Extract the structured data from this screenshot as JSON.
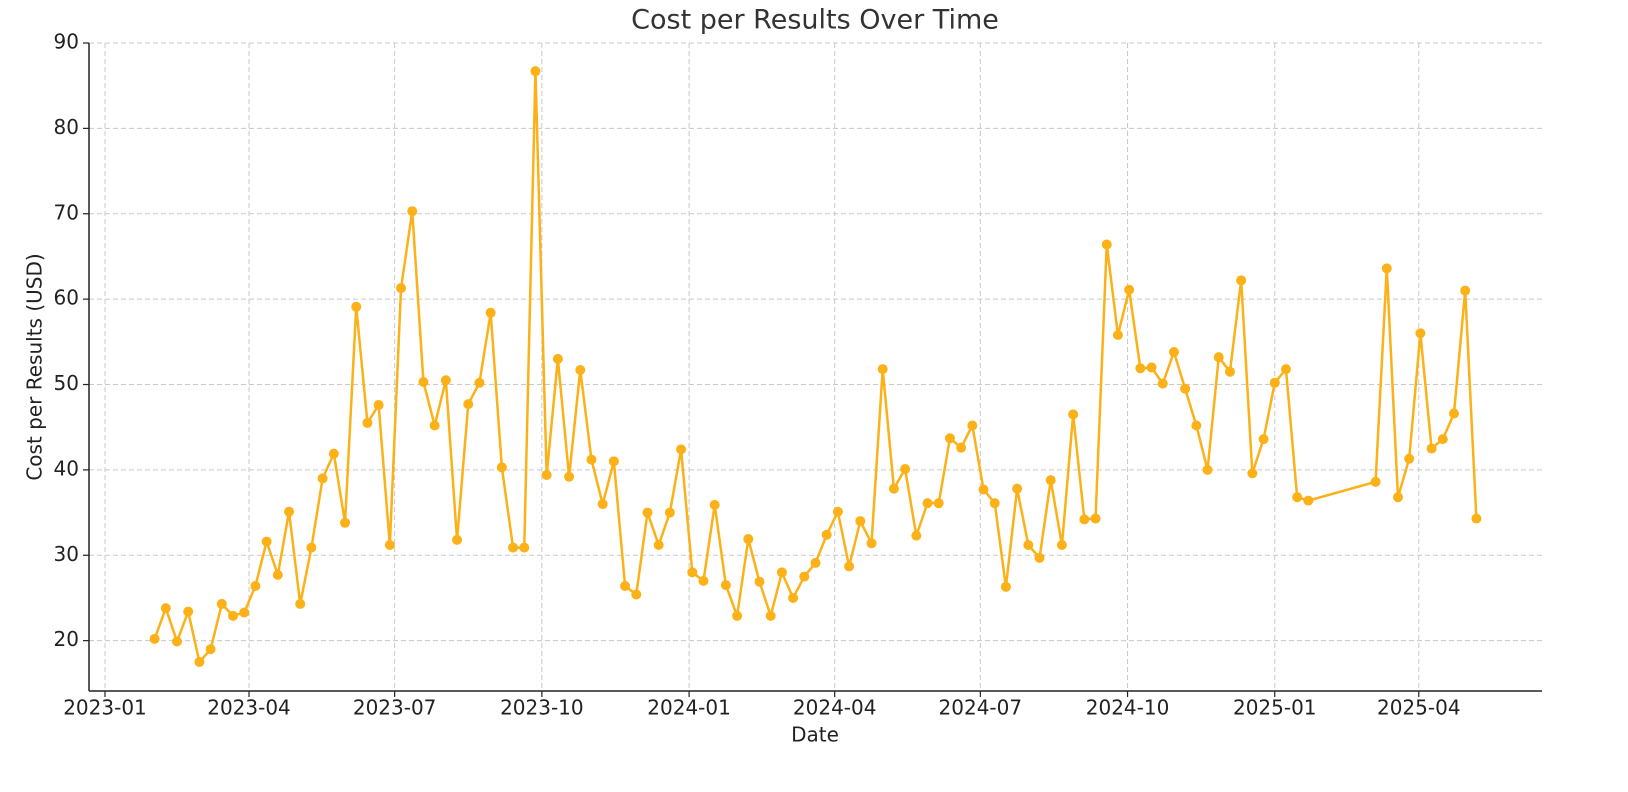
{
  "chart_data": {
    "type": "line",
    "title": "Cost per Results Over Time",
    "xlabel": "Date",
    "ylabel": "Cost per Results (USD)",
    "x": [
      "2023-02-01",
      "2023-02-08",
      "2023-02-15",
      "2023-02-22",
      "2023-03-01",
      "2023-03-08",
      "2023-03-15",
      "2023-03-22",
      "2023-03-29",
      "2023-04-05",
      "2023-04-12",
      "2023-04-19",
      "2023-04-26",
      "2023-05-03",
      "2023-05-10",
      "2023-05-17",
      "2023-05-24",
      "2023-05-31",
      "2023-06-07",
      "2023-06-14",
      "2023-06-21",
      "2023-06-28",
      "2023-07-05",
      "2023-07-12",
      "2023-07-19",
      "2023-07-26",
      "2023-08-02",
      "2023-08-09",
      "2023-08-16",
      "2023-08-23",
      "2023-08-30",
      "2023-09-06",
      "2023-09-13",
      "2023-09-20",
      "2023-09-27",
      "2023-10-04",
      "2023-10-11",
      "2023-10-18",
      "2023-10-25",
      "2023-11-01",
      "2023-11-08",
      "2023-11-15",
      "2023-11-22",
      "2023-11-29",
      "2023-12-06",
      "2023-12-13",
      "2023-12-20",
      "2023-12-27",
      "2024-01-03",
      "2024-01-10",
      "2024-01-17",
      "2024-01-24",
      "2024-01-31",
      "2024-02-07",
      "2024-02-14",
      "2024-02-21",
      "2024-02-28",
      "2024-03-06",
      "2024-03-13",
      "2024-03-20",
      "2024-03-27",
      "2024-04-03",
      "2024-04-10",
      "2024-04-17",
      "2024-04-24",
      "2024-05-01",
      "2024-05-08",
      "2024-05-15",
      "2024-05-22",
      "2024-05-29",
      "2024-06-05",
      "2024-06-12",
      "2024-06-19",
      "2024-06-26",
      "2024-07-03",
      "2024-07-10",
      "2024-07-17",
      "2024-07-24",
      "2024-07-31",
      "2024-08-07",
      "2024-08-14",
      "2024-08-21",
      "2024-08-28",
      "2024-09-04",
      "2024-09-11",
      "2024-09-18",
      "2024-09-25",
      "2024-10-02",
      "2024-10-09",
      "2024-10-16",
      "2024-10-23",
      "2024-10-30",
      "2024-11-06",
      "2024-11-13",
      "2024-11-20",
      "2024-11-27",
      "2024-12-04",
      "2024-12-11",
      "2024-12-18",
      "2024-12-25",
      "2025-01-01",
      "2025-01-08",
      "2025-01-15",
      "2025-01-22",
      "2025-03-05",
      "2025-03-12",
      "2025-03-19",
      "2025-03-26",
      "2025-04-02",
      "2025-04-09",
      "2025-04-16",
      "2025-04-23",
      "2025-04-30",
      "2025-05-07"
    ],
    "series": [
      {
        "name": "Cost per Results",
        "color": "#fbb117",
        "values": [
          20.2,
          23.8,
          19.9,
          23.4,
          17.5,
          19.0,
          24.3,
          22.9,
          23.3,
          26.4,
          31.6,
          27.7,
          35.1,
          24.3,
          30.9,
          39.0,
          41.9,
          33.8,
          59.1,
          45.5,
          47.6,
          31.2,
          61.3,
          70.3,
          50.3,
          45.2,
          50.5,
          31.8,
          47.7,
          50.2,
          58.4,
          40.3,
          30.9,
          30.9,
          86.7,
          39.4,
          53.0,
          39.2,
          51.7,
          41.2,
          36.0,
          41.0,
          26.4,
          25.4,
          35.0,
          31.2,
          35.0,
          42.4,
          28.0,
          27.0,
          35.9,
          26.5,
          22.9,
          31.9,
          26.9,
          22.9,
          28.0,
          25.0,
          27.5,
          29.1,
          32.4,
          35.1,
          28.7,
          34.0,
          31.4,
          51.8,
          37.8,
          40.1,
          32.3,
          36.1,
          36.1,
          43.7,
          42.6,
          45.2,
          37.7,
          36.1,
          26.3,
          37.8,
          31.2,
          29.7,
          38.8,
          31.2,
          46.5,
          34.2,
          34.3,
          66.4,
          55.8,
          61.1,
          51.9,
          52.0,
          50.1,
          53.8,
          49.5,
          45.2,
          40.0,
          53.2,
          51.5,
          62.2,
          39.6,
          43.6,
          50.2,
          51.8,
          36.8,
          36.4,
          38.6,
          63.6,
          36.8,
          41.3,
          56.0,
          42.5,
          43.6,
          46.6,
          61.0,
          34.3
        ]
      }
    ],
    "xlim": [
      "2022-12-22",
      "2025-06-17"
    ],
    "xticks": [
      "2023-01",
      "2023-04",
      "2023-07",
      "2023-10",
      "2024-01",
      "2024-04",
      "2024-07",
      "2024-10",
      "2025-01",
      "2025-04"
    ],
    "ylim": [
      14.1,
      90
    ],
    "yticks": [
      20,
      30,
      40,
      50,
      60,
      70,
      80,
      90
    ],
    "grid": true
  }
}
